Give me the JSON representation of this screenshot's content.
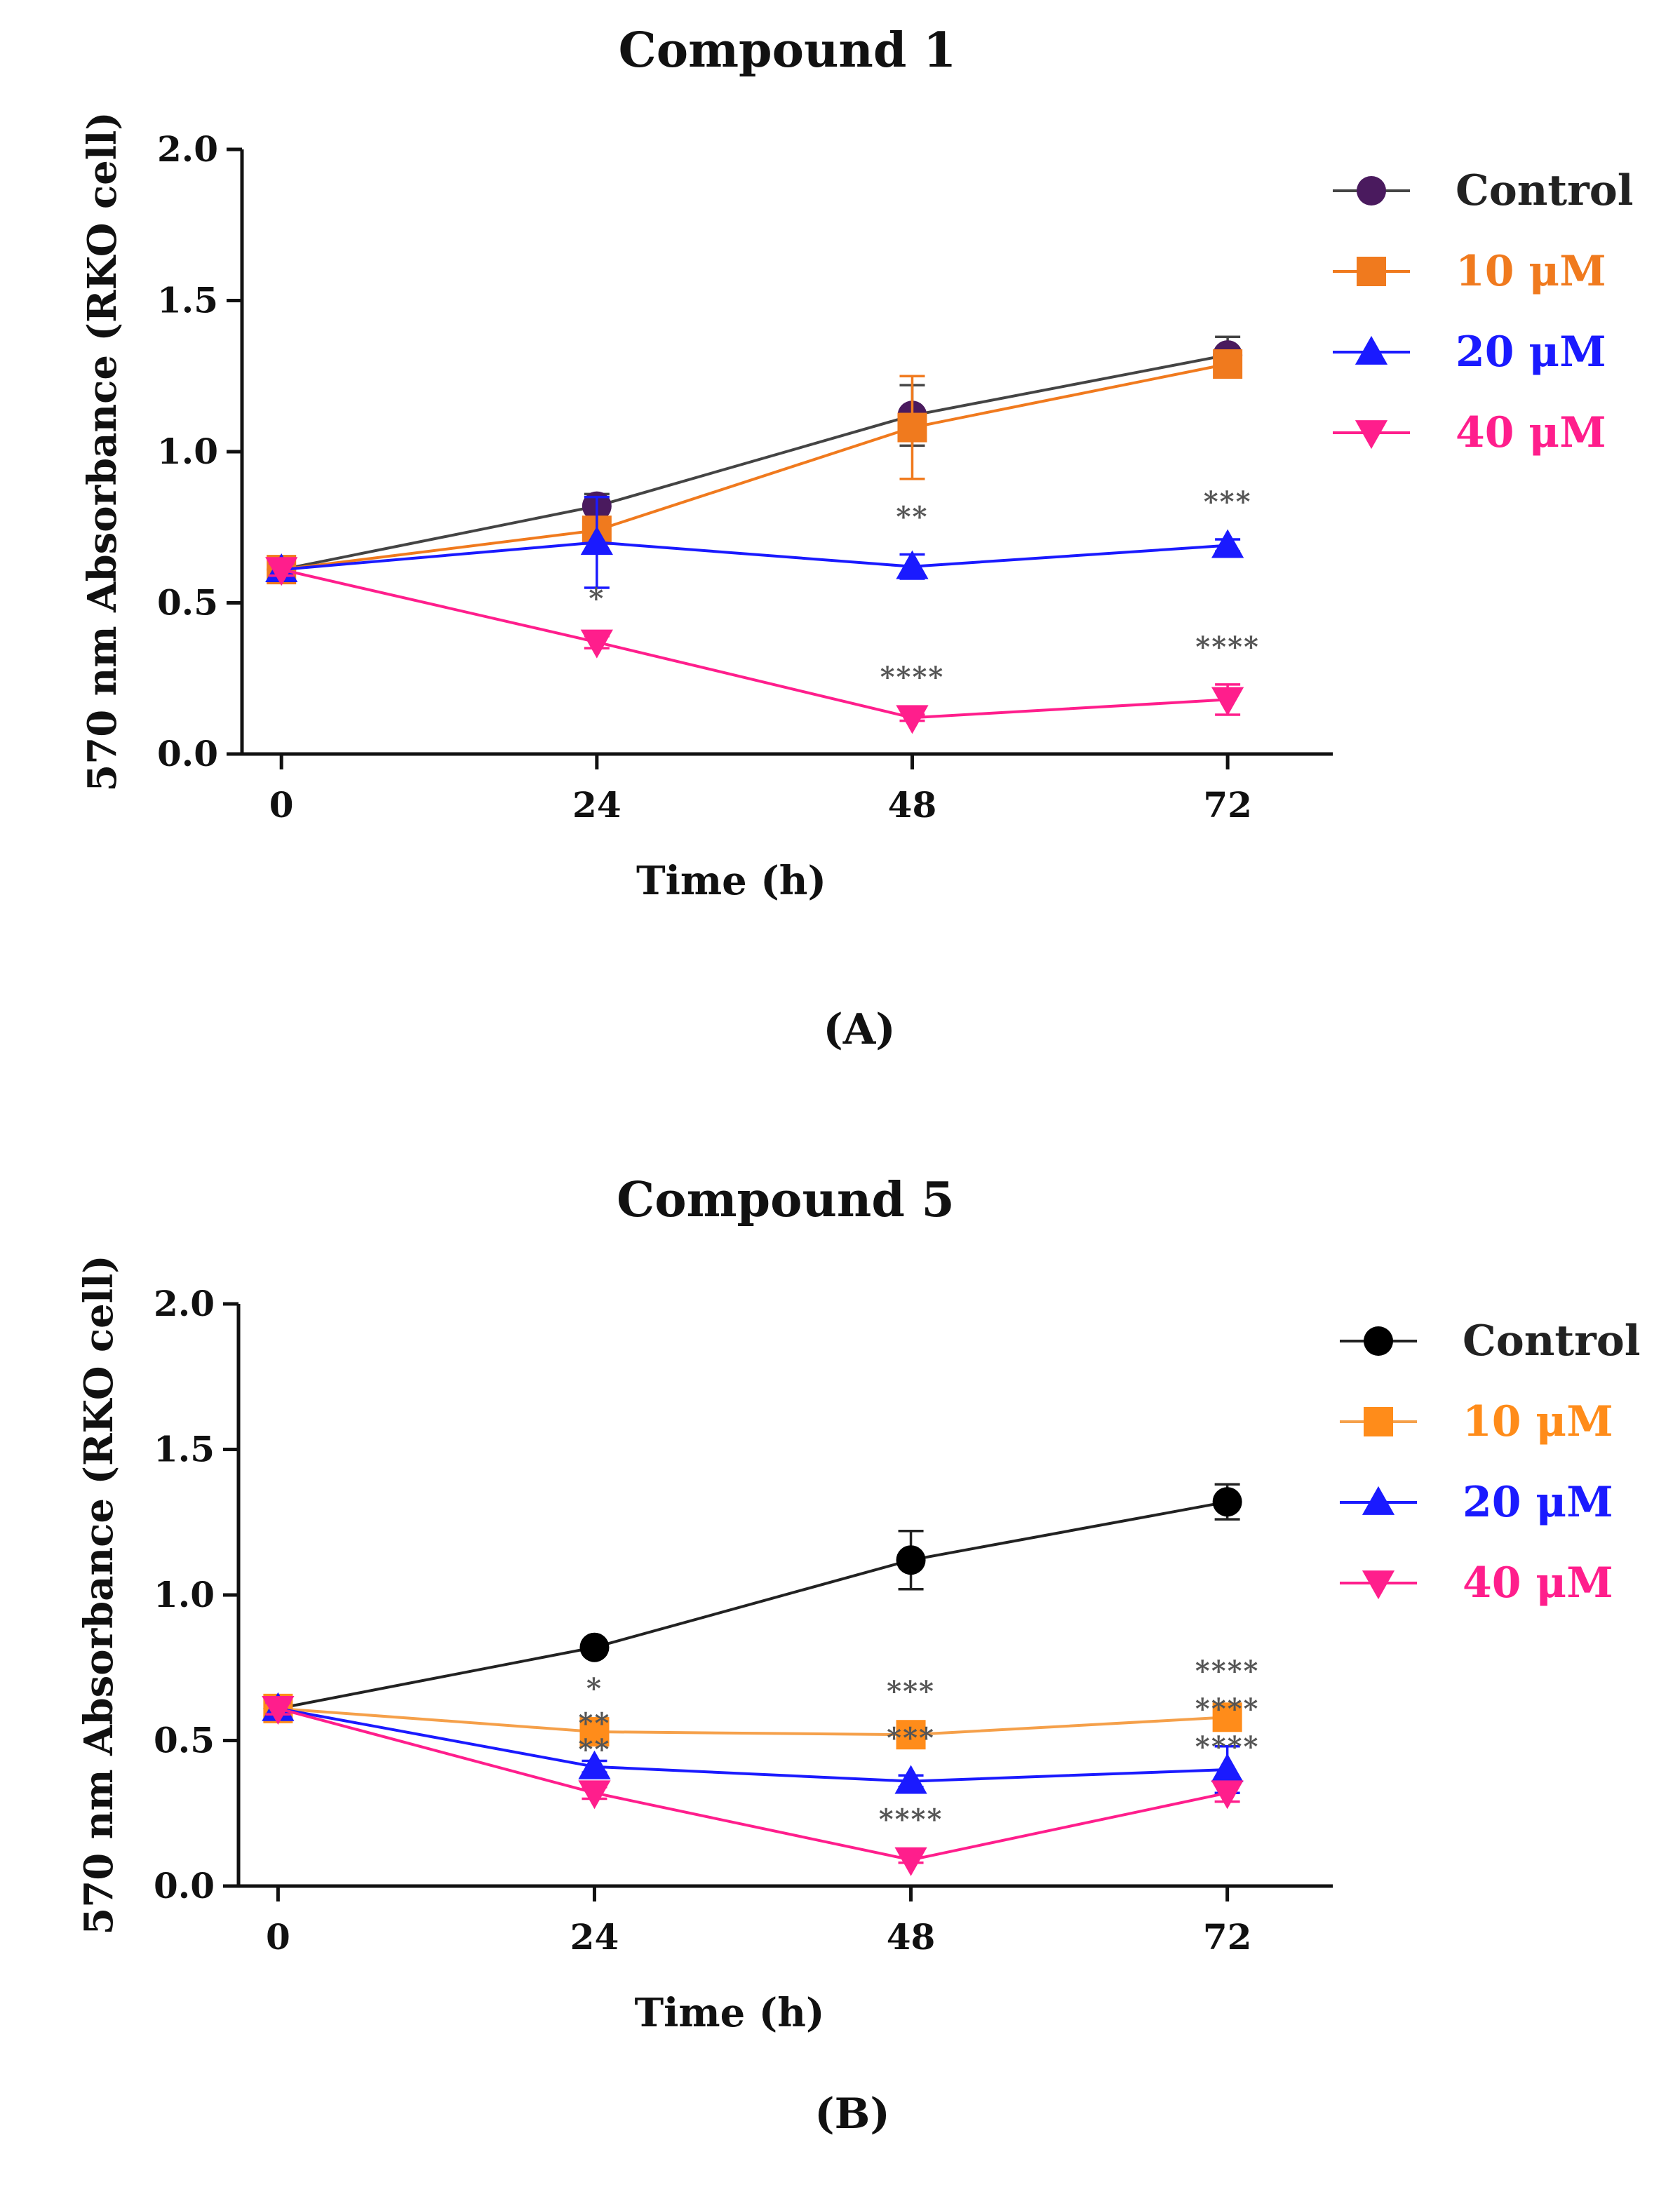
{
  "chart_data": [
    {
      "type": "line",
      "title": "Compound 1",
      "panel_label": "(A)",
      "xlabel": "Time (h)",
      "ylabel": "570 nm Absorbance (RKO cell)",
      "x": [
        0,
        24,
        48,
        72
      ],
      "x_ticks": [
        "0",
        "24",
        "48",
        "72"
      ],
      "y_ticks": [
        "0.0",
        "0.5",
        "1.0",
        "1.5",
        "2.0"
      ],
      "ylim": [
        0,
        2.0
      ],
      "xlim": [
        -3,
        80
      ],
      "grid": false,
      "legend_position": "top-right",
      "series": [
        {
          "name": "Control",
          "color": "#4a1a5e",
          "line_color": "#444444",
          "marker": "circle",
          "values": [
            0.61,
            0.82,
            1.12,
            1.32
          ],
          "errors": [
            0.02,
            0.04,
            0.1,
            0.06
          ],
          "sig": [
            "",
            "",
            "",
            ""
          ]
        },
        {
          "name": "10 μM",
          "color": "#f07a1e",
          "line_color": "#f07a1e",
          "marker": "square",
          "values": [
            0.61,
            0.74,
            1.08,
            1.29
          ],
          "errors": [
            0.02,
            0.03,
            0.17,
            0.03
          ],
          "sig": [
            "",
            "",
            "",
            ""
          ]
        },
        {
          "name": "20 μM",
          "color": "#1a1aff",
          "line_color": "#1a1aff",
          "marker": "triangle-up",
          "values": [
            0.61,
            0.7,
            0.62,
            0.69
          ],
          "errors": [
            0.02,
            0.15,
            0.04,
            0.02
          ],
          "sig": [
            "",
            "",
            "**",
            "***"
          ]
        },
        {
          "name": "40 μM",
          "color": "#ff1e8c",
          "line_color": "#ff1e8c",
          "marker": "triangle-down",
          "values": [
            0.61,
            0.37,
            0.12,
            0.18
          ],
          "errors": [
            0.02,
            0.02,
            0.01,
            0.05
          ],
          "sig": [
            "",
            "*",
            "****",
            "****"
          ]
        }
      ]
    },
    {
      "type": "line",
      "title": "Compound 5",
      "panel_label": "(B)",
      "xlabel": "Time (h)",
      "ylabel": "570 nm Absorbance (RKO cell)",
      "x": [
        0,
        24,
        48,
        72
      ],
      "x_ticks": [
        "0",
        "24",
        "48",
        "72"
      ],
      "y_ticks": [
        "0.0",
        "0.5",
        "1.0",
        "1.5",
        "2.0"
      ],
      "ylim": [
        0,
        2.0
      ],
      "xlim": [
        -3,
        80
      ],
      "grid": false,
      "legend_position": "top-right",
      "series": [
        {
          "name": "Control",
          "color": "#000000",
          "line_color": "#222222",
          "marker": "circle",
          "values": [
            0.61,
            0.82,
            1.12,
            1.32
          ],
          "errors": [
            0.02,
            0.02,
            0.1,
            0.06
          ],
          "sig": [
            "",
            "",
            "",
            ""
          ]
        },
        {
          "name": "10 μM",
          "color": "#ff8c1a",
          "line_color": "#f5a04a",
          "marker": "square",
          "values": [
            0.61,
            0.53,
            0.52,
            0.58
          ],
          "errors": [
            0.02,
            0.02,
            0.02,
            0.03
          ],
          "sig": [
            "",
            "*",
            "***",
            "****"
          ]
        },
        {
          "name": "20 μM",
          "color": "#1a1aff",
          "line_color": "#1a1aff",
          "marker": "triangle-up",
          "values": [
            0.61,
            0.41,
            0.36,
            0.4
          ],
          "errors": [
            0.02,
            0.02,
            0.02,
            0.08
          ],
          "sig": [
            "",
            "**",
            "***",
            "****"
          ]
        },
        {
          "name": "40 μM",
          "color": "#ff1e8c",
          "line_color": "#ff1e8c",
          "marker": "triangle-down",
          "values": [
            0.61,
            0.32,
            0.09,
            0.32
          ],
          "errors": [
            0.02,
            0.02,
            0.01,
            0.03
          ],
          "sig": [
            "",
            "**",
            "****",
            "****"
          ]
        }
      ]
    }
  ]
}
